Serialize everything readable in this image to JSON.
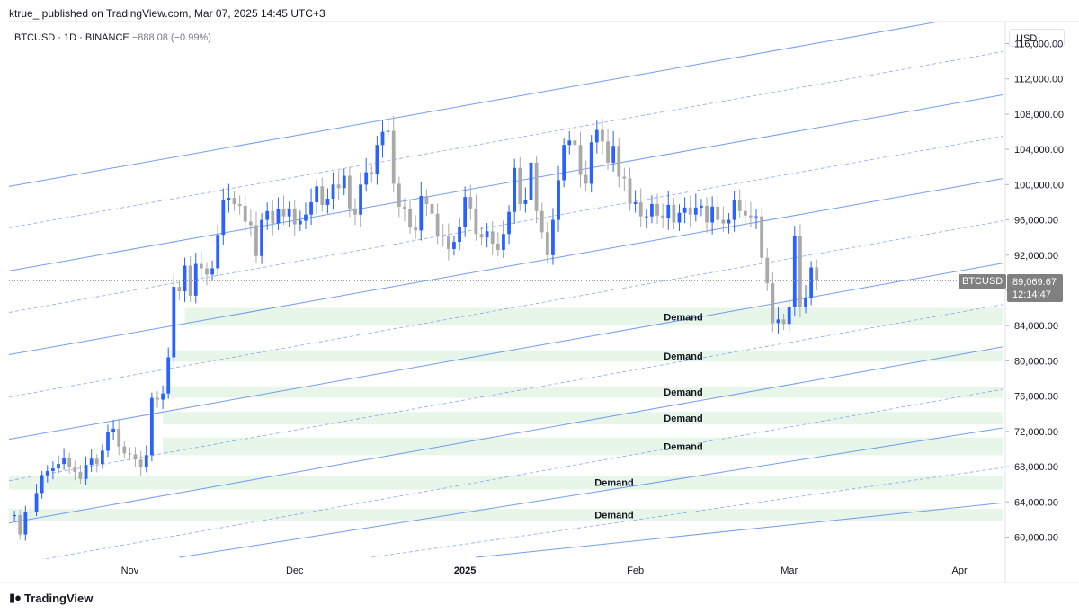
{
  "header": {
    "text": "ktrue_ published on TradingView.com, Mar 07, 2025 14:45 UTC+3"
  },
  "legend": {
    "symbol": "BTCUSD · 1D · BINANCE",
    "change": "−888.08 (−0.99%)"
  },
  "currency": "USD",
  "last_price": {
    "symbol": "BTCUSD",
    "value": "89,069.67",
    "countdown": "12:14:47",
    "y": 89069.67
  },
  "brand": {
    "name": "TradingView",
    "icon": "tradingview-logo-icon"
  },
  "colors": {
    "up": "#2962ff",
    "down": "#a9a9a9",
    "channel": "#5b8def",
    "zone": "#e8f5e9",
    "grid": "#f0f3fa"
  },
  "chart_data": {
    "type": "candlestick",
    "y_axis": {
      "ticks": [
        60000,
        64000,
        68000,
        72000,
        76000,
        80000,
        84000,
        88000,
        92000,
        96000,
        100000,
        104000,
        108000,
        112000,
        116000
      ],
      "labels": [
        "60,000.00",
        "64,000.00",
        "68,000.00",
        "72,000.00",
        "76,000.00",
        "80,000.00",
        "84,000.00",
        "88,000.00",
        "92,000.00",
        "96,000.00",
        "100,000.00",
        "104,000.00",
        "108,000.00",
        "112,000.00",
        "116,000.00"
      ],
      "range": [
        57500,
        118500
      ]
    },
    "x_axis": {
      "range": [
        "2024-10-10",
        "2025-04-09"
      ],
      "ticks": [
        {
          "label": "Nov",
          "date": "2024-11-01",
          "bold": false
        },
        {
          "label": "Dec",
          "date": "2024-12-01",
          "bold": false
        },
        {
          "label": "2025",
          "date": "2025-01-01",
          "bold": true
        },
        {
          "label": "Feb",
          "date": "2025-02-01",
          "bold": false
        },
        {
          "label": "Mar",
          "date": "2025-03-01",
          "bold": false
        },
        {
          "label": "Apr",
          "date": "2025-04-01",
          "bold": false
        }
      ]
    },
    "start_date": "2024-10-11",
    "closes": [
      62500,
      60300,
      62800,
      62900,
      65000,
      67000,
      67500,
      67800,
      68300,
      69000,
      68000,
      67400,
      66600,
      68200,
      68900,
      68300,
      69800,
      71900,
      72300,
      70300,
      69500,
      69400,
      68800,
      67900,
      69300,
      75800,
      75600,
      76300,
      80400,
      88400,
      87900,
      90800,
      87400,
      91000,
      90500,
      89800,
      90500,
      94300,
      98200,
      98500,
      97800,
      97600,
      95800,
      95400,
      91900,
      96000,
      97000,
      95600,
      97200,
      96400,
      97300,
      95500,
      95900,
      96600,
      98000,
      99800,
      97700,
      98400,
      100000,
      99600,
      101000,
      97300,
      96600,
      100000,
      101400,
      101200,
      104500,
      106000,
      106100,
      100100,
      97500,
      97200,
      95200,
      94800,
      98700,
      97800,
      96700,
      94200,
      94100,
      92700,
      93500,
      95200,
      98600,
      97300,
      94400,
      94000,
      94700,
      93300,
      92600,
      94400,
      96900,
      101900,
      97800,
      98300,
      102500,
      97000,
      94600,
      92000,
      96000,
      100500,
      104500,
      105000,
      104500,
      101100,
      100100,
      104800,
      106200,
      104900,
      102500,
      104400,
      100900,
      100700,
      97800,
      98000,
      96400,
      96400,
      97800,
      96500,
      96200,
      97700,
      95700,
      96800,
      97400,
      96600,
      97400,
      97600,
      95700,
      97500,
      96000,
      95600,
      96000,
      98300,
      97000,
      96500,
      96300,
      96400,
      91700,
      88800,
      84300,
      84700,
      84200,
      86100,
      94200,
      86100,
      87200,
      90600,
      89070
    ],
    "channel_lines": [
      {
        "label": "channel-line",
        "d0": "2024-10-10",
        "v0": 99800,
        "d1": "2025-04-09",
        "v1": 119800,
        "dashed": false
      },
      {
        "label": "channel-line",
        "d0": "2024-10-10",
        "v0": 90200,
        "d1": "2025-04-09",
        "v1": 110200,
        "dashed": false
      },
      {
        "label": "channel-line",
        "d0": "2024-10-10",
        "v0": 80700,
        "d1": "2025-04-09",
        "v1": 100700,
        "dashed": false
      },
      {
        "label": "channel-line",
        "d0": "2024-10-10",
        "v0": 71100,
        "d1": "2025-04-09",
        "v1": 91100,
        "dashed": false
      },
      {
        "label": "channel-line",
        "d0": "2024-10-10",
        "v0": 61600,
        "d1": "2025-04-09",
        "v1": 81600,
        "dashed": false
      },
      {
        "label": "channel-line",
        "d0": "2024-11-10",
        "v0": 57700,
        "d1": "2025-04-09",
        "v1": 72400,
        "dashed": false
      },
      {
        "label": "channel-line",
        "d0": "2025-01-03",
        "v0": 57700,
        "d1": "2025-04-09",
        "v1": 63900,
        "dashed": false
      },
      {
        "label": "channel-midline",
        "d0": "2024-10-10",
        "v0": 95100,
        "d1": "2025-04-09",
        "v1": 115100,
        "dashed": true
      },
      {
        "label": "channel-midline",
        "d0": "2024-10-10",
        "v0": 85500,
        "d1": "2025-04-09",
        "v1": 105500,
        "dashed": true
      },
      {
        "label": "channel-midline",
        "d0": "2024-10-10",
        "v0": 75900,
        "d1": "2025-04-09",
        "v1": 95900,
        "dashed": true
      },
      {
        "label": "channel-midline",
        "d0": "2024-10-10",
        "v0": 66400,
        "d1": "2025-04-09",
        "v1": 86400,
        "dashed": true
      },
      {
        "label": "channel-midline",
        "d0": "2024-10-10",
        "v0": 56800,
        "d1": "2025-04-09",
        "v1": 76800,
        "dashed": true
      },
      {
        "label": "channel-midline",
        "d0": "2024-12-15",
        "v0": 57700,
        "d1": "2025-04-09",
        "v1": 67900,
        "dashed": true
      }
    ],
    "demand_zones": [
      {
        "label": "Demand",
        "top": 86000,
        "bottom": 84000,
        "from": "2024-11-11"
      },
      {
        "label": "Demand",
        "top": 81200,
        "bottom": 79900,
        "from": "2024-11-08"
      },
      {
        "label": "Demand",
        "top": 77100,
        "bottom": 75800,
        "from": "2024-11-07"
      },
      {
        "label": "Demand",
        "top": 74200,
        "bottom": 72800,
        "from": "2024-11-07"
      },
      {
        "label": "Demand",
        "top": 71300,
        "bottom": 69300,
        "from": "2024-11-07"
      },
      {
        "label": "Demand",
        "top": 67000,
        "bottom": 65400,
        "from": "2024-10-10"
      },
      {
        "label": "Demand",
        "top": 63200,
        "bottom": 61900,
        "from": "2024-10-10"
      }
    ]
  }
}
